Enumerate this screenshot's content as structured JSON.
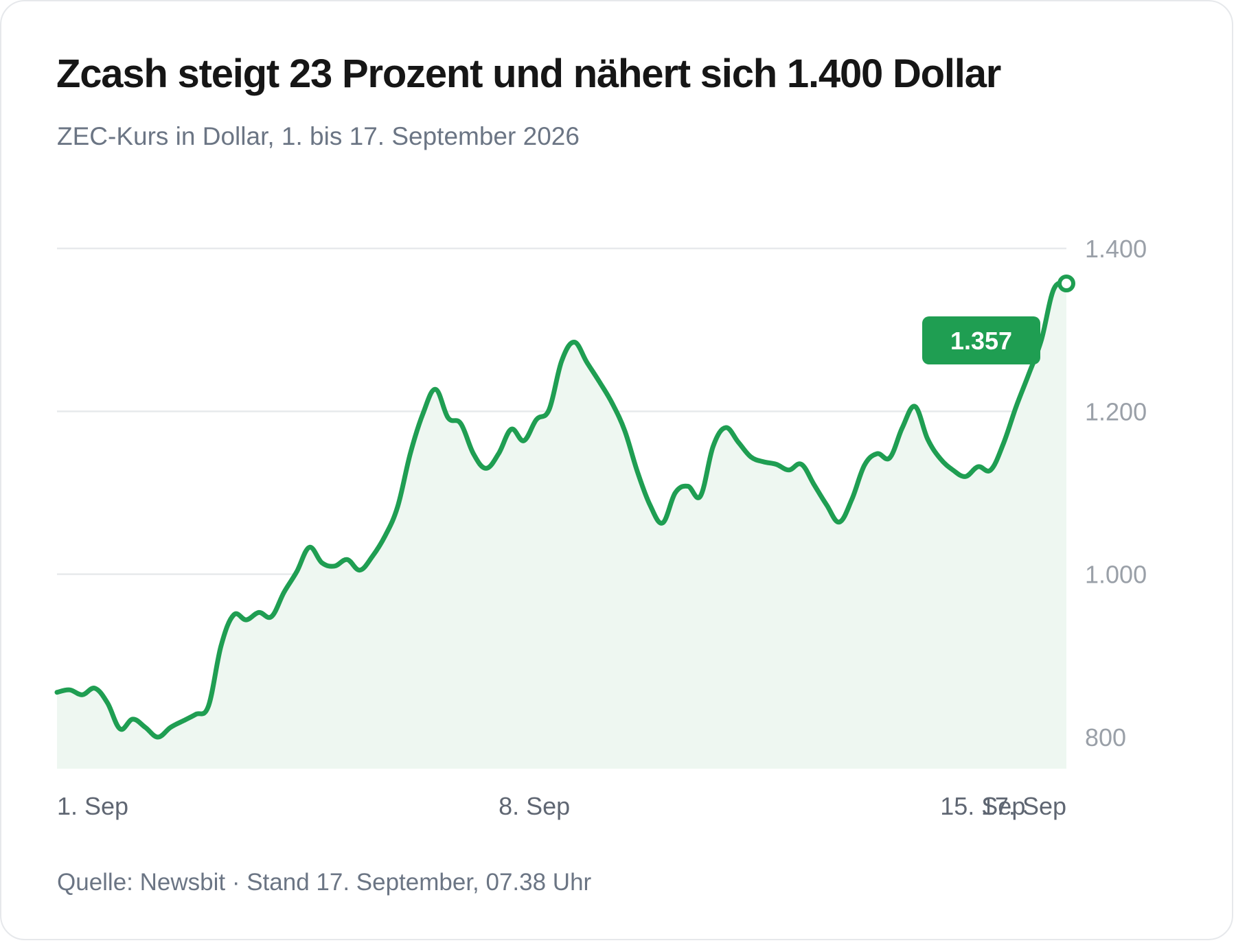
{
  "header": {
    "title": "Zcash steigt 23 Prozent und nähert sich 1.400 Dollar",
    "subtitle": "ZEC-Kurs in Dollar, 1. bis 17. September 2026"
  },
  "footer": {
    "source": "Quelle: Newsbit · Stand 17. September, 07.38 Uhr"
  },
  "colors": {
    "line": "#1f9e52",
    "fill": "#eef7f1",
    "badge": "#1f9e52",
    "grid": "#e7e9ec"
  },
  "chart_data": {
    "type": "area",
    "title": "Zcash steigt 23 Prozent und nähert sich 1.400 Dollar",
    "subtitle": "ZEC-Kurs in Dollar, 1. bis 17. September 2026",
    "xlabel": "",
    "ylabel": "",
    "ylim": [
      760,
      1400
    ],
    "yticks": [
      800,
      1000,
      1200,
      1400
    ],
    "ytick_labels": [
      "800",
      "1.000",
      "1.200",
      "1.400"
    ],
    "y_axis_side": "right",
    "grid": true,
    "xticks": [
      {
        "x": 1,
        "label": "1. Sep"
      },
      {
        "x": 8,
        "label": "8. Sep"
      },
      {
        "x": 15,
        "label": "15. Sep"
      },
      {
        "x": 17,
        "label": "17. Sep"
      }
    ],
    "last_value_label": "1.357",
    "series": [
      {
        "x": [
          1,
          1.2,
          1.4,
          1.6,
          1.8,
          2,
          2.2,
          2.4,
          2.6,
          2.8,
          3,
          3.2,
          3.4,
          3.6,
          3.8,
          4,
          4.2,
          4.4,
          4.6,
          4.8,
          5,
          5.2,
          5.4,
          5.6,
          5.8,
          6,
          6.2,
          6.4,
          6.6,
          6.8,
          7,
          7.2,
          7.4,
          7.6,
          7.8,
          8,
          8.2,
          8.4,
          8.6,
          8.8,
          9,
          9.2,
          9.4,
          9.6,
          9.8,
          10,
          10.2,
          10.4,
          10.6,
          10.8,
          11,
          11.2,
          11.4,
          11.6,
          11.8,
          12,
          12.2,
          12.4,
          12.6,
          12.8,
          13,
          13.2,
          13.4,
          13.6,
          13.8,
          14,
          14.2,
          14.4,
          14.6,
          14.8,
          15,
          15.2,
          15.4,
          15.6,
          15.8,
          16,
          16.2,
          16.4,
          16.6,
          16.8,
          17
        ],
        "values": [
          855,
          858,
          852,
          860,
          842,
          810,
          822,
          812,
          800,
          812,
          820,
          828,
          838,
          912,
          950,
          944,
          953,
          948,
          978,
          1003,
          1033,
          1014,
          1010,
          1018,
          1005,
          1022,
          1047,
          1083,
          1148,
          1197,
          1227,
          1192,
          1185,
          1148,
          1130,
          1148,
          1178,
          1164,
          1190,
          1202,
          1262,
          1285,
          1260,
          1236,
          1210,
          1176,
          1126,
          1085,
          1063,
          1100,
          1108,
          1096,
          1157,
          1180,
          1162,
          1144,
          1138,
          1135,
          1128,
          1135,
          1110,
          1085,
          1064,
          1092,
          1134,
          1148,
          1143,
          1180,
          1206,
          1166,
          1142,
          1128,
          1120,
          1132,
          1128,
          1160,
          1205,
          1245,
          1287,
          1350,
          1357
        ]
      }
    ]
  }
}
